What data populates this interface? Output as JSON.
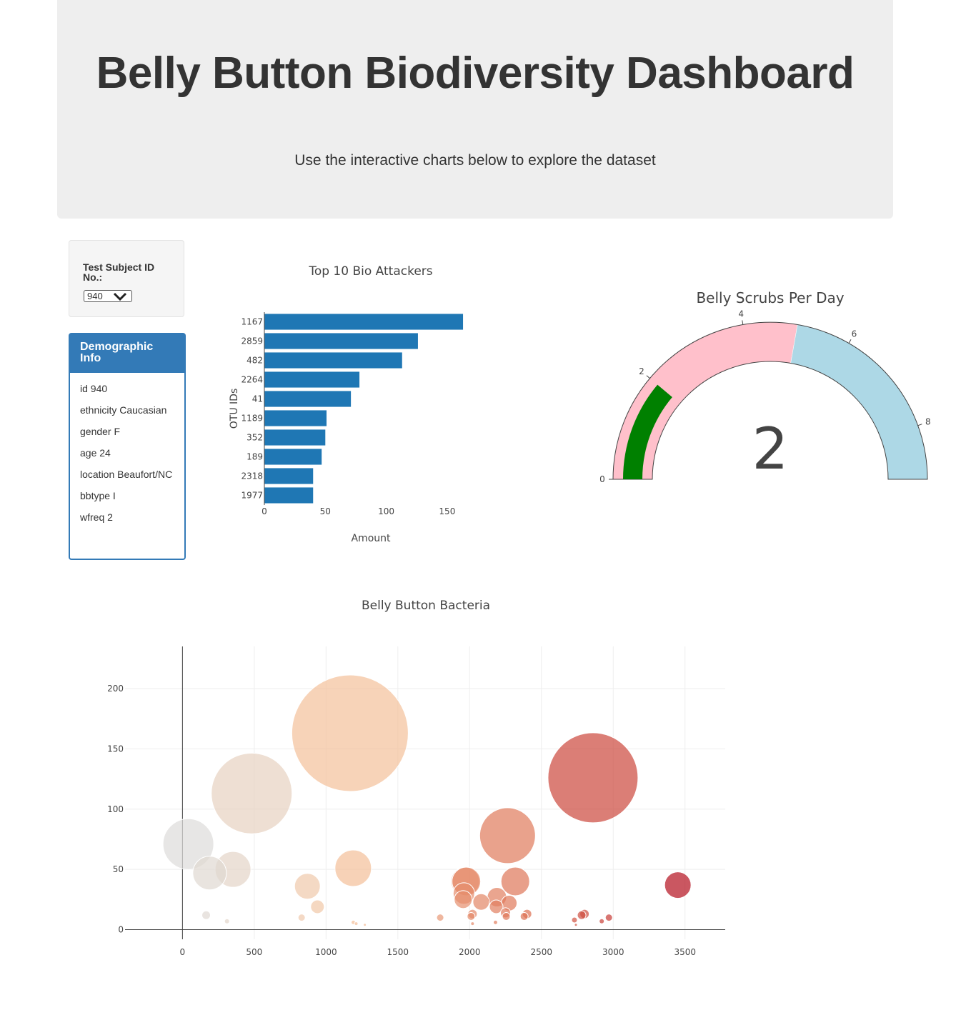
{
  "header": {
    "title": "Belly Button Biodiversity Dashboard",
    "subtitle": "Use the interactive charts below to explore the dataset"
  },
  "selector": {
    "label": "Test Subject ID No.:",
    "selected": "940"
  },
  "demographics": {
    "title": "Demographic Info",
    "rows": [
      "id 940",
      "ethnicity Caucasian",
      "gender F",
      "age 24",
      "location Beaufort/NC",
      "bbtype I",
      "wfreq 2"
    ]
  },
  "colors": {
    "bar": "#1f77b4",
    "gauge_pink": "#ffc0cb",
    "gauge_blue": "#add8e6",
    "gauge_value": "#008000"
  },
  "chart_data": [
    {
      "type": "bar",
      "orientation": "horizontal",
      "title": "Top 10 Bio Attackers",
      "xlabel": "Amount",
      "ylabel": "OTU IDs",
      "categories": [
        "1167",
        "2859",
        "482",
        "2264",
        "41",
        "1189",
        "352",
        "189",
        "2318",
        "1977"
      ],
      "values": [
        163,
        126,
        113,
        78,
        71,
        51,
        50,
        47,
        40,
        40
      ],
      "xlim": [
        0,
        170
      ],
      "xticks": [
        0,
        50,
        100,
        150
      ]
    },
    {
      "type": "gauge",
      "title": "Belly Scrubs Per Day",
      "value": 2,
      "range": [
        0,
        9
      ],
      "ticks": [
        0,
        2,
        4,
        6,
        8
      ],
      "steps": [
        {
          "range": [
            0,
            5
          ],
          "color": "#ffc0cb"
        },
        {
          "range": [
            5,
            9
          ],
          "color": "#add8e6"
        }
      ]
    },
    {
      "type": "scatter",
      "title": "Belly Button Bacteria",
      "xlim": [
        -400,
        3780
      ],
      "ylim": [
        -8,
        235
      ],
      "xticks": [
        0,
        500,
        1000,
        1500,
        2000,
        2500,
        3000,
        3500
      ],
      "yticks": [
        0,
        50,
        100,
        150,
        200
      ],
      "points": [
        {
          "x": 41,
          "y": 71
        },
        {
          "x": 189,
          "y": 47
        },
        {
          "x": 352,
          "y": 50
        },
        {
          "x": 482,
          "y": 113
        },
        {
          "x": 1167,
          "y": 163
        },
        {
          "x": 1189,
          "y": 51
        },
        {
          "x": 870,
          "y": 36
        },
        {
          "x": 940,
          "y": 19
        },
        {
          "x": 165,
          "y": 12
        },
        {
          "x": 310,
          "y": 7
        },
        {
          "x": 830,
          "y": 10
        },
        {
          "x": 1970,
          "y": 40
        },
        {
          "x": 1960,
          "y": 30
        },
        {
          "x": 1955,
          "y": 25
        },
        {
          "x": 1977,
          "y": 40
        },
        {
          "x": 2264,
          "y": 78
        },
        {
          "x": 2318,
          "y": 40
        },
        {
          "x": 2859,
          "y": 126
        },
        {
          "x": 3450,
          "y": 37
        },
        {
          "x": 2080,
          "y": 23
        },
        {
          "x": 2190,
          "y": 27
        },
        {
          "x": 2185,
          "y": 19
        },
        {
          "x": 2275,
          "y": 22
        },
        {
          "x": 2250,
          "y": 14
        },
        {
          "x": 2255,
          "y": 11
        },
        {
          "x": 2400,
          "y": 13
        },
        {
          "x": 2380,
          "y": 11
        },
        {
          "x": 2020,
          "y": 13
        },
        {
          "x": 2010,
          "y": 11
        },
        {
          "x": 1795,
          "y": 10
        },
        {
          "x": 2800,
          "y": 13
        },
        {
          "x": 2780,
          "y": 12
        },
        {
          "x": 2970,
          "y": 10
        },
        {
          "x": 2730,
          "y": 8
        },
        {
          "x": 2920,
          "y": 7
        },
        {
          "x": 2740,
          "y": 4
        },
        {
          "x": 1190,
          "y": 6
        },
        {
          "x": 1210,
          "y": 5
        },
        {
          "x": 1270,
          "y": 4
        },
        {
          "x": 2020,
          "y": 5
        },
        {
          "x": 2180,
          "y": 6
        }
      ]
    }
  ]
}
